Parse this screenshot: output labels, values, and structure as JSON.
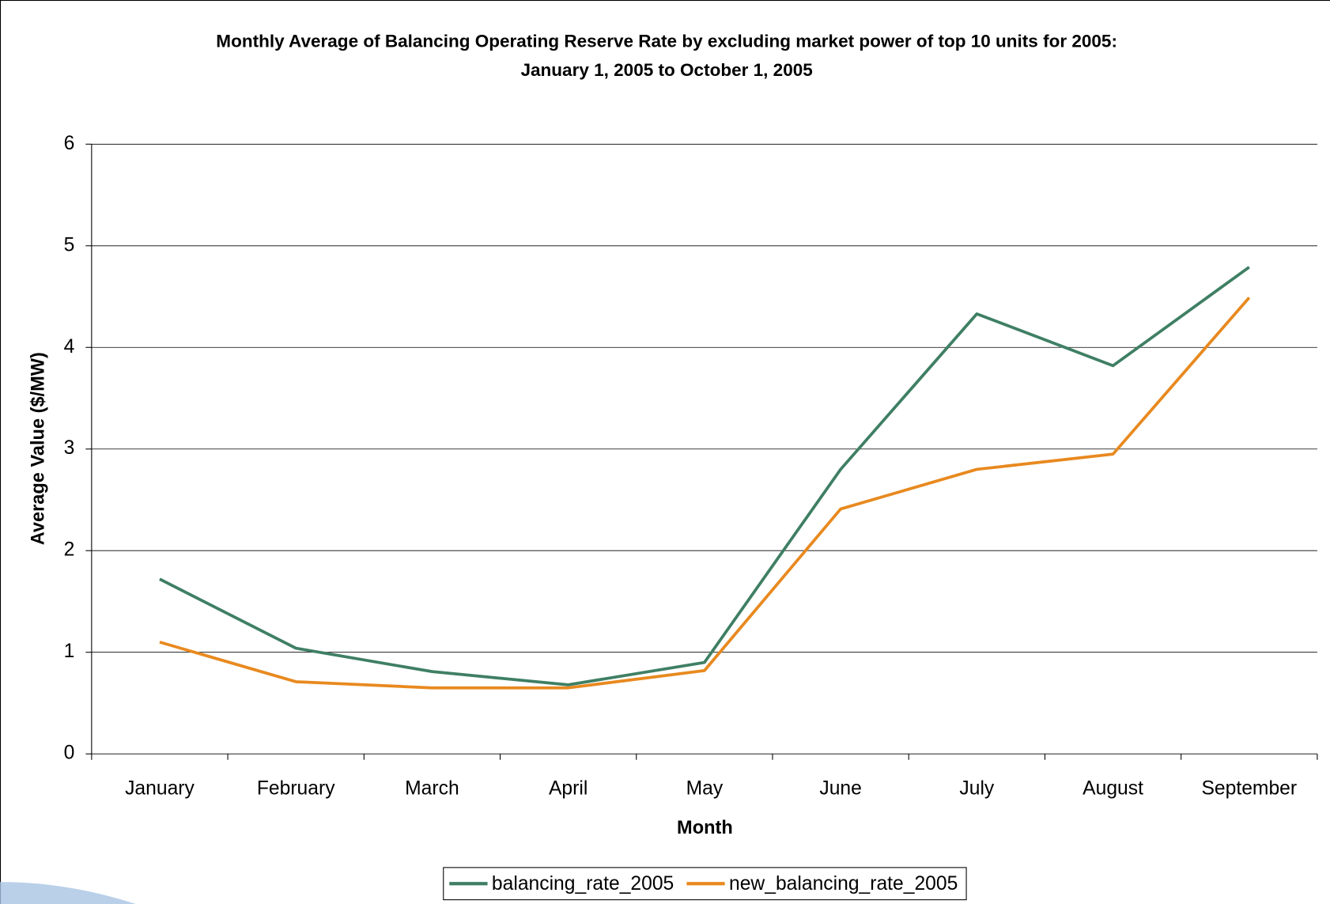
{
  "chart_data": {
    "type": "line",
    "title": "Monthly Average of Balancing Operating Reserve Rate by excluding market power of top 10 units for 2005:",
    "subtitle": "January 1, 2005 to October 1, 2005",
    "x_label": "Month",
    "y_label": "Average Value ($/MW)",
    "categories": [
      "January",
      "February",
      "March",
      "April",
      "May",
      "June",
      "July",
      "August",
      "September"
    ],
    "series": [
      {
        "name": "balancing_rate_2005",
        "color": "#3f7f64",
        "values": [
          1.72,
          1.04,
          0.81,
          0.68,
          0.9,
          2.8,
          4.33,
          3.82,
          4.79
        ]
      },
      {
        "name": "new_balancing_rate_2005",
        "color": "#e8891f",
        "values": [
          1.1,
          0.71,
          0.65,
          0.65,
          0.82,
          2.41,
          2.8,
          2.95,
          4.49
        ]
      }
    ],
    "ylim": [
      0,
      6
    ],
    "yticks": [
      0,
      1,
      2,
      3,
      4,
      5,
      6
    ],
    "grid": true,
    "legend": "bottom"
  }
}
